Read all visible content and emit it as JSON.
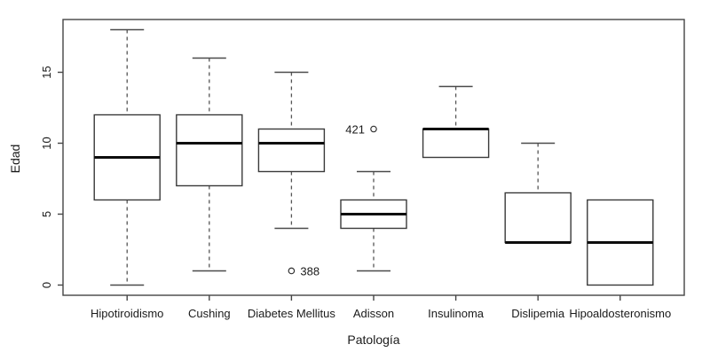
{
  "chart_data": {
    "type": "boxplot",
    "title": "",
    "xlabel": "Patología",
    "ylabel": "Edad",
    "ylim": [
      -0.72,
      18.72
    ],
    "xlim": [
      0.22,
      7.78
    ],
    "yticks": [
      0,
      5,
      10,
      15
    ],
    "grid": false,
    "legend": false,
    "categories": [
      "Hipotiroidismo",
      "Cushing",
      "Diabetes Mellitus",
      "Adisson",
      "Insulinoma",
      "Dislipemia",
      "Hipoaldosteronismo"
    ],
    "boxes": [
      {
        "category": "Hipotiroidismo",
        "whisker_low": 0,
        "q1": 6,
        "median": 9,
        "q3": 12,
        "whisker_high": 18,
        "outliers": []
      },
      {
        "category": "Cushing",
        "whisker_low": 1,
        "q1": 7,
        "median": 10,
        "q3": 12,
        "whisker_high": 16,
        "outliers": []
      },
      {
        "category": "Diabetes Mellitus",
        "whisker_low": 4,
        "q1": 8,
        "median": 10,
        "q3": 11,
        "whisker_high": 15,
        "outliers": [
          {
            "value": 1,
            "label": "388",
            "label_side": "right"
          }
        ]
      },
      {
        "category": "Adisson",
        "whisker_low": 1,
        "q1": 4,
        "median": 5,
        "q3": 6,
        "whisker_high": 8,
        "outliers": [
          {
            "value": 11,
            "label": "421",
            "label_side": "left"
          }
        ]
      },
      {
        "category": "Insulinoma",
        "whisker_low": 9,
        "q1": 9,
        "median": 11,
        "q3": 11,
        "whisker_high": 14,
        "outliers": []
      },
      {
        "category": "Dislipemia",
        "whisker_low": 3,
        "q1": 3,
        "median": 3,
        "q3": 6.5,
        "whisker_high": 10,
        "outliers": []
      },
      {
        "category": "Hipoaldosteronismo",
        "whisker_low": 0,
        "q1": 0,
        "median": 3,
        "q3": 6,
        "whisker_high": 6,
        "outliers": []
      }
    ],
    "colors": {
      "line": "#3a3a3a",
      "median": "#0d0d0d",
      "background": "#ffffff"
    }
  }
}
